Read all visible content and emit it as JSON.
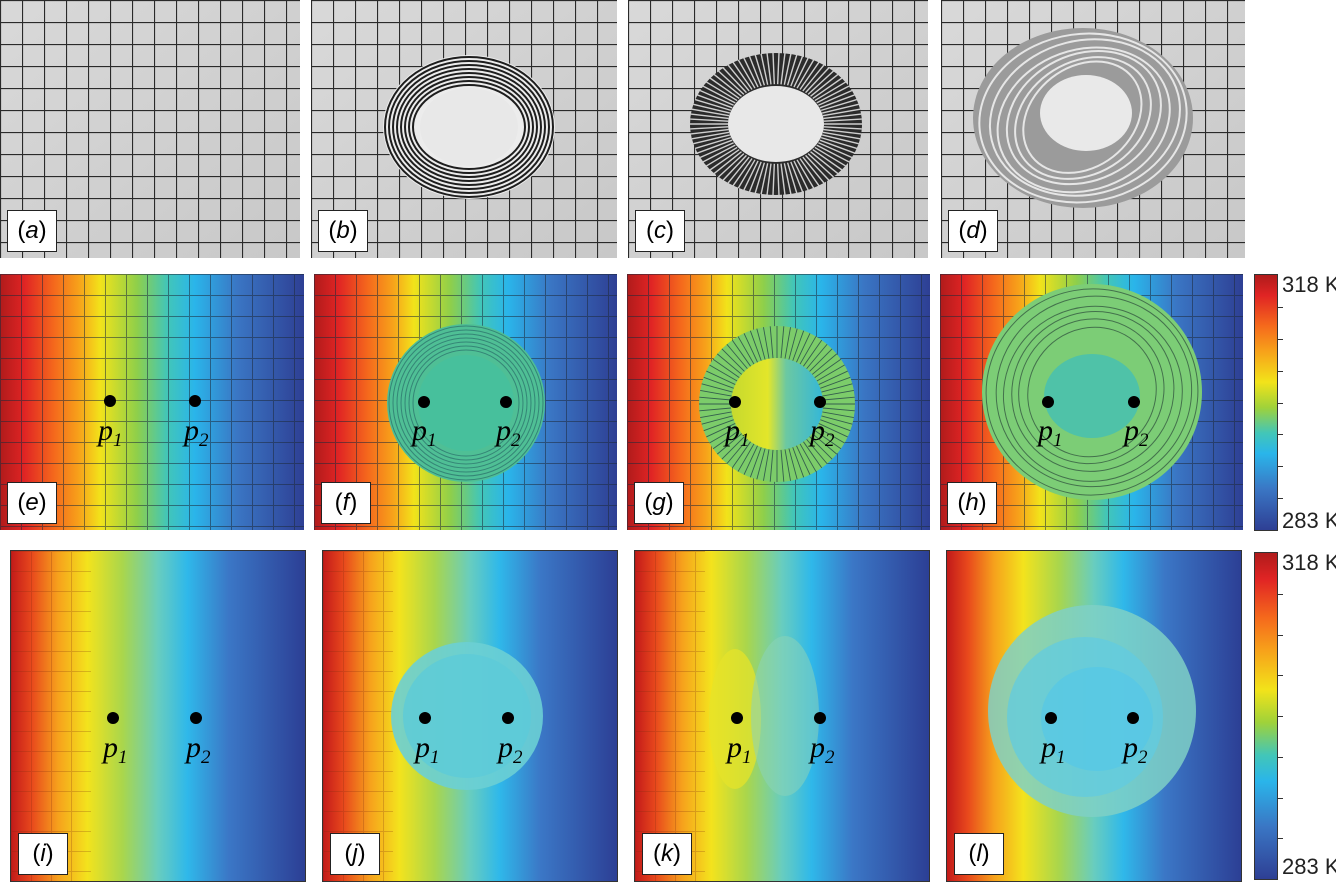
{
  "row1": {
    "labels": [
      "a",
      "b",
      "c",
      "d"
    ]
  },
  "row2": {
    "labels": [
      "e",
      "f",
      "g",
      "h"
    ],
    "points": [
      "p",
      "p"
    ],
    "subscripts": [
      "1",
      "2"
    ]
  },
  "row3": {
    "labels": [
      "i",
      "j",
      "k",
      "l"
    ]
  },
  "colorbar": {
    "max_label": "318 K",
    "min_label": "283 K",
    "colors": [
      "#b01b1b",
      "#f2e31a",
      "#42c6b8",
      "#2ab5ea",
      "#2e3f94"
    ]
  }
}
